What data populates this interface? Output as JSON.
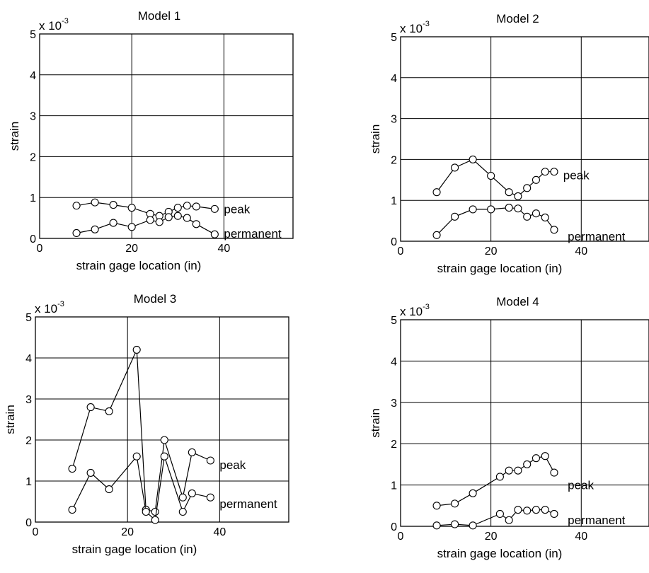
{
  "chart_data": [
    {
      "type": "line",
      "title": "Model 1",
      "xlabel": "strain gage location (in)",
      "ylabel": "strain",
      "y_multiplier": "x 10",
      "y_multiplier_exp": "-3",
      "xlim": [
        0,
        55
      ],
      "ylim": [
        0,
        5
      ],
      "xticks": [
        "0",
        "20",
        "40"
      ],
      "yticks": [
        "0",
        "1",
        "2",
        "3",
        "4",
        "5"
      ],
      "grid": true,
      "series": [
        {
          "name": "peak",
          "x": [
            8,
            12,
            16,
            20,
            24,
            26,
            28,
            30,
            32,
            34,
            38
          ],
          "y": [
            0.8,
            0.88,
            0.82,
            0.75,
            0.6,
            0.55,
            0.65,
            0.75,
            0.8,
            0.78,
            0.72
          ]
        },
        {
          "name": "permanent",
          "x": [
            8,
            12,
            16,
            20,
            24,
            26,
            28,
            30,
            32,
            34,
            38
          ],
          "y": [
            0.13,
            0.22,
            0.38,
            0.28,
            0.45,
            0.4,
            0.52,
            0.55,
            0.5,
            0.35,
            0.1
          ]
        }
      ]
    },
    {
      "type": "line",
      "title": "Model 2",
      "xlabel": "strain gage location (in)",
      "ylabel": "strain",
      "y_multiplier": "x 10",
      "y_multiplier_exp": "-3",
      "xlim": [
        0,
        55
      ],
      "ylim": [
        0,
        5
      ],
      "xticks": [
        "0",
        "20",
        "40"
      ],
      "yticks": [
        "0",
        "1",
        "2",
        "3",
        "4",
        "5"
      ],
      "grid": true,
      "series": [
        {
          "name": "peak",
          "x": [
            8,
            12,
            16,
            20,
            24,
            26,
            28,
            30,
            32,
            34
          ],
          "y": [
            1.2,
            1.8,
            2.0,
            1.6,
            1.2,
            1.1,
            1.3,
            1.5,
            1.7,
            1.7
          ]
        },
        {
          "name": "permanent",
          "x": [
            8,
            12,
            16,
            20,
            24,
            26,
            28,
            30,
            32,
            34
          ],
          "y": [
            0.15,
            0.6,
            0.78,
            0.78,
            0.82,
            0.8,
            0.6,
            0.68,
            0.58,
            0.28
          ]
        }
      ]
    },
    {
      "type": "line",
      "title": "Model 3",
      "xlabel": "strain gage location (in)",
      "ylabel": "strain",
      "y_multiplier": "x 10",
      "y_multiplier_exp": "-3",
      "xlim": [
        0,
        55
      ],
      "ylim": [
        0,
        5
      ],
      "xticks": [
        "0",
        "20",
        "40"
      ],
      "yticks": [
        "0",
        "1",
        "2",
        "3",
        "4",
        "5"
      ],
      "grid": true,
      "series": [
        {
          "name": "peak",
          "x": [
            8,
            12,
            16,
            22,
            24,
            26,
            28,
            32,
            34,
            38
          ],
          "y": [
            1.3,
            2.8,
            2.7,
            4.2,
            0.3,
            0.25,
            2.0,
            0.6,
            1.7,
            1.5
          ]
        },
        {
          "name": "permanent",
          "x": [
            8,
            12,
            16,
            22,
            24,
            26,
            28,
            32,
            34,
            38
          ],
          "y": [
            0.3,
            1.2,
            0.8,
            1.6,
            0.25,
            0.05,
            1.6,
            0.25,
            0.7,
            0.6
          ]
        }
      ]
    },
    {
      "type": "line",
      "title": "Model 4",
      "xlabel": "strain gage location (in)",
      "ylabel": "strain",
      "y_multiplier": "x 10",
      "y_multiplier_exp": "-3",
      "xlim": [
        0,
        55
      ],
      "ylim": [
        0,
        5
      ],
      "xticks": [
        "0",
        "20",
        "40"
      ],
      "yticks": [
        "0",
        "1",
        "2",
        "3",
        "4",
        "5"
      ],
      "grid": true,
      "series": [
        {
          "name": "peak",
          "x": [
            8,
            12,
            16,
            22,
            24,
            26,
            28,
            30,
            32,
            34
          ],
          "y": [
            0.5,
            0.55,
            0.8,
            1.2,
            1.35,
            1.35,
            1.5,
            1.65,
            1.7,
            1.3
          ]
        },
        {
          "name": "permanent",
          "x": [
            8,
            12,
            16,
            22,
            24,
            26,
            28,
            30,
            32,
            34
          ],
          "y": [
            0.02,
            0.05,
            0.02,
            0.3,
            0.15,
            0.4,
            0.38,
            0.4,
            0.4,
            0.3
          ]
        }
      ]
    }
  ]
}
